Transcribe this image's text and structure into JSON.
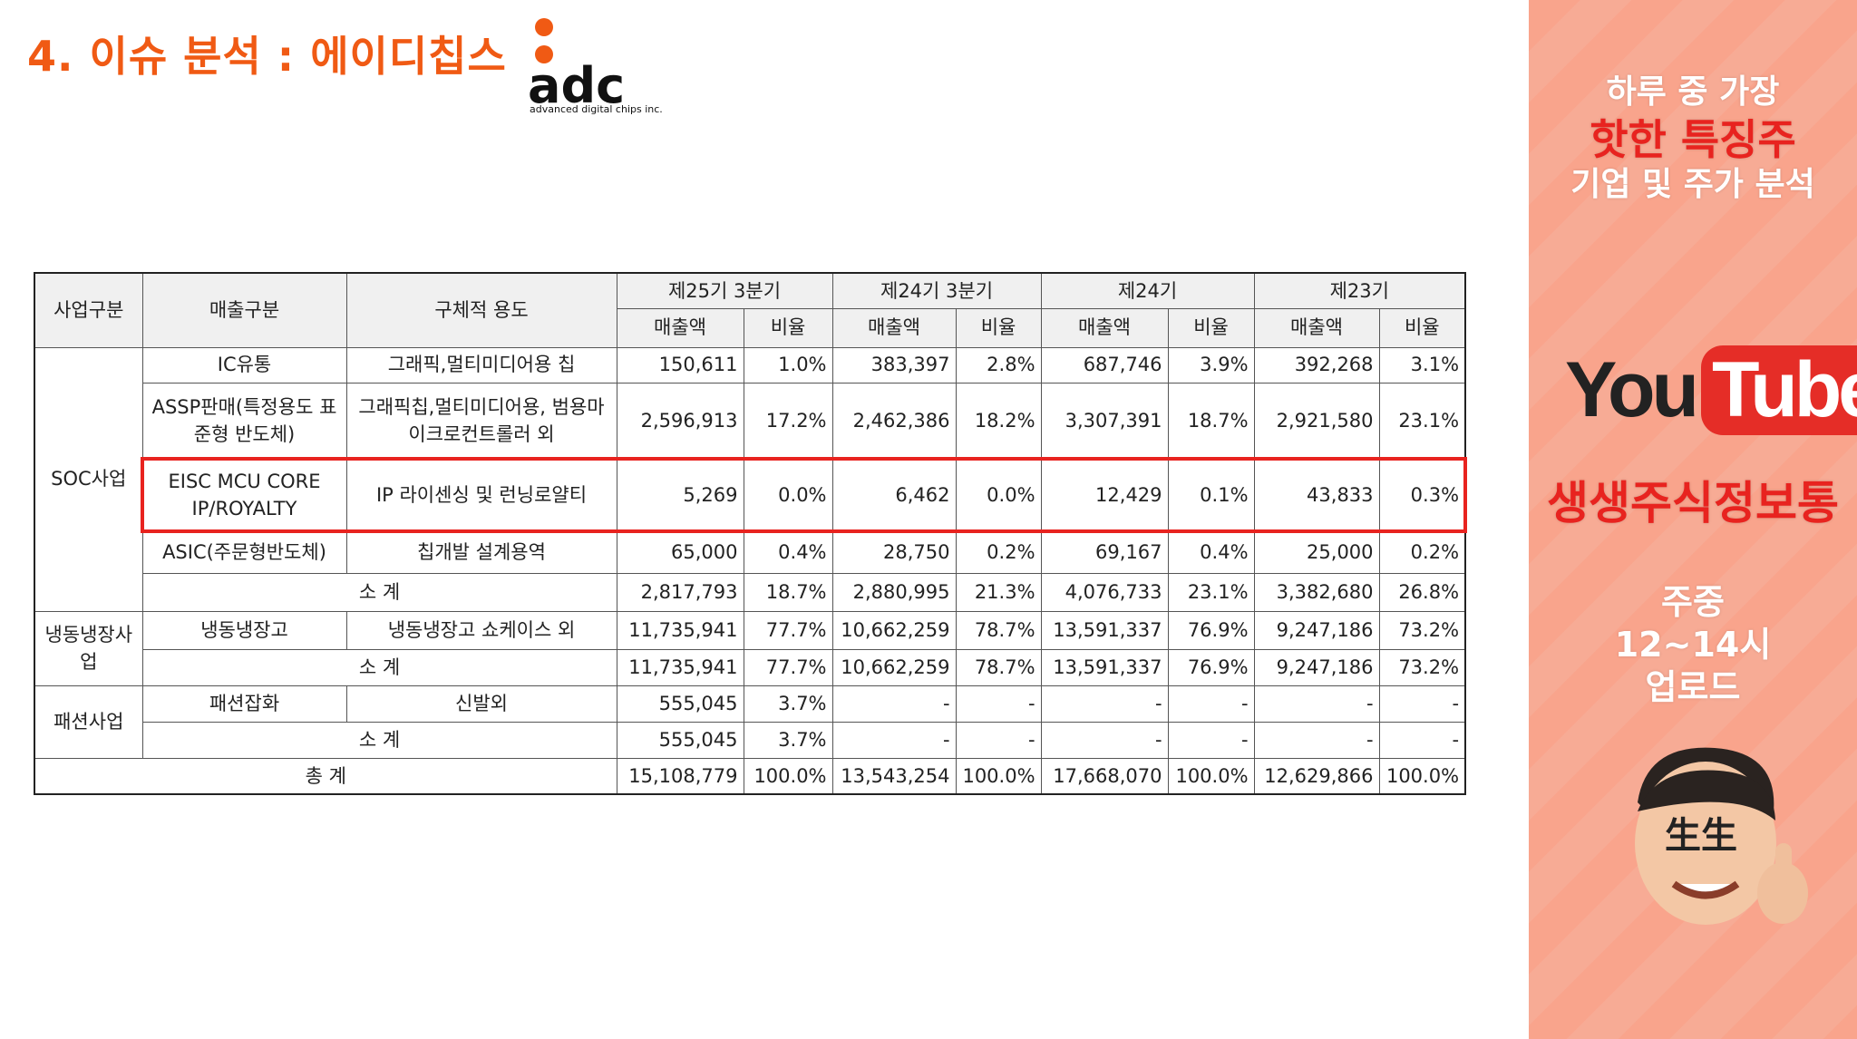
{
  "header": {
    "title": "4. 이슈 분석 : 에이디칩스"
  },
  "logo": {
    "name": "adc",
    "tagline": "advanced digital chips inc."
  },
  "table": {
    "columns": [
      "사업구분",
      "매출구분",
      "구체적 용도"
    ],
    "periods": [
      "제25기 3분기",
      "제24기 3분기",
      "제24기",
      "제23기"
    ],
    "subheaders": [
      "매출액",
      "비율",
      "매출액",
      "비율",
      "매출액",
      "비율",
      "매출액",
      "비율"
    ],
    "groups": [
      {
        "segment": "SOC사업",
        "rows": [
          {
            "type": "IC유통",
            "use": "그래픽,멀티미디어용 칩",
            "values": [
              "150,611",
              "1.0%",
              "383,397",
              "2.8%",
              "687,746",
              "3.9%",
              "392,268",
              "3.1%"
            ]
          },
          {
            "type": "ASSP판매(특정용도 표준형 반도체)",
            "use": "그래픽칩,멀티미디어용, 범용마이크로컨트롤러 외",
            "values": [
              "2,596,913",
              "17.2%",
              "2,462,386",
              "18.2%",
              "3,307,391",
              "18.7%",
              "2,921,580",
              "23.1%"
            ]
          },
          {
            "type": "EISC MCU CORE IP/ROYALTY",
            "use": "IP 라이센싱 및 런닝로얄티",
            "values": [
              "5,269",
              "0.0%",
              "6,462",
              "0.0%",
              "12,429",
              "0.1%",
              "43,833",
              "0.3%"
            ],
            "highlighted": true
          },
          {
            "type": "ASIC(주문형반도체)",
            "use": "칩개발 설계용역",
            "values": [
              "65,000",
              "0.4%",
              "28,750",
              "0.2%",
              "69,167",
              "0.4%",
              "25,000",
              "0.2%"
            ]
          }
        ],
        "subtotal": {
          "label": "소 계",
          "values": [
            "2,817,793",
            "18.7%",
            "2,880,995",
            "21.3%",
            "4,076,733",
            "23.1%",
            "3,382,680",
            "26.8%"
          ]
        }
      },
      {
        "segment": "냉동냉장사업",
        "rows": [
          {
            "type": "냉동냉장고",
            "use": "냉동냉장고 쇼케이스 외",
            "values": [
              "11,735,941",
              "77.7%",
              "10,662,259",
              "78.7%",
              "13,591,337",
              "76.9%",
              "9,247,186",
              "73.2%"
            ]
          }
        ],
        "subtotal": {
          "label": "소 계",
          "values": [
            "11,735,941",
            "77.7%",
            "10,662,259",
            "78.7%",
            "13,591,337",
            "76.9%",
            "9,247,186",
            "73.2%"
          ]
        }
      },
      {
        "segment": "패션사업",
        "rows": [
          {
            "type": "패션잡화",
            "use": "신발외",
            "values": [
              "555,045",
              "3.7%",
              "-",
              "-",
              "-",
              "-",
              "-",
              "-"
            ]
          }
        ],
        "subtotal": {
          "label": "소 계",
          "values": [
            "555,045",
            "3.7%",
            "-",
            "-",
            "-",
            "-",
            "-",
            "-"
          ]
        }
      }
    ],
    "total": {
      "label": "총 계",
      "values": [
        "15,108,779",
        "100.0%",
        "13,543,254",
        "100.0%",
        "17,668,070",
        "100.0%",
        "12,629,866",
        "100.0%"
      ]
    }
  },
  "sidebar": {
    "tagline": [
      "하루 중 가장",
      "핫한 특징주",
      "기업 및 주가 분석"
    ],
    "youtube": [
      "You",
      "Tube"
    ],
    "channel": "생생주식정보통",
    "schedule": [
      "주중",
      "12~14시",
      "업로드"
    ]
  }
}
